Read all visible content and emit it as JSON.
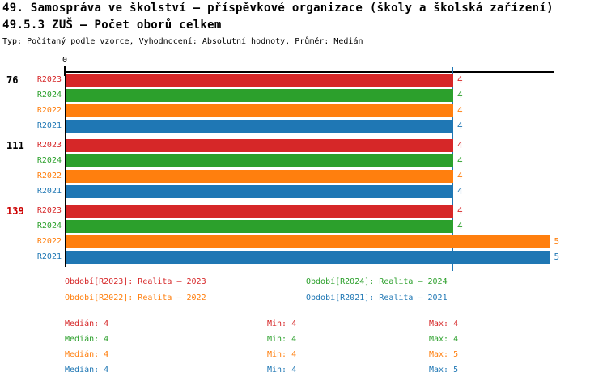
{
  "header": {
    "title_line1": "49. Samospráva ve školství – příspěvkové organizace (školy a školská zařízení)",
    "title_line2": "49.5.3 ZUŠ – Počet oborů celkem",
    "subtitle": "Typ: Počítaný podle vzorce, Vyhodnocení: Absolutní hodnoty, Průměr: Medián"
  },
  "colors": {
    "R2023": "#d62728",
    "R2024": "#2ca02c",
    "R2022": "#ff7f0e",
    "R2021": "#1f77b4",
    "axis": "#000000",
    "median_line": "#1f77b4",
    "highlighted_category": "#cc0000",
    "default_category": "#000000"
  },
  "chart_data": {
    "type": "bar",
    "orientation": "horizontal",
    "title": "49.5.3 ZUŠ – Počet oborů celkem",
    "categories": [
      "76",
      "111",
      "139"
    ],
    "bar_order": [
      "R2023",
      "R2024",
      "R2022",
      "R2021"
    ],
    "series": [
      {
        "name": "R2023",
        "values": [
          4,
          4,
          4
        ],
        "color": "#d62728"
      },
      {
        "name": "R2024",
        "values": [
          4,
          4,
          4
        ],
        "color": "#2ca02c"
      },
      {
        "name": "R2022",
        "values": [
          4,
          4,
          5
        ],
        "color": "#ff7f0e"
      },
      {
        "name": "R2021",
        "values": [
          4,
          4,
          5
        ],
        "color": "#1f77b4"
      }
    ],
    "xlim": [
      0,
      5.05
    ],
    "x_origin_label": "0",
    "grid": "off",
    "median_line": {
      "value": 4,
      "color": "#1f77b4"
    },
    "category_label_colors": {
      "76": "#000000",
      "111": "#000000",
      "139": "#cc0000"
    },
    "legend_position": "bottom"
  },
  "legend": {
    "items": [
      {
        "text": "Období[R2023]: Realita – 2023",
        "color": "#d62728"
      },
      {
        "text": "Období[R2024]: Realita – 2024",
        "color": "#2ca02c"
      },
      {
        "text": "Období[R2022]: Realita – 2022",
        "color": "#ff7f0e"
      },
      {
        "text": "Období[R2021]: Realita – 2021",
        "color": "#1f77b4"
      }
    ]
  },
  "stats": {
    "rows": [
      {
        "series": "R2023",
        "color": "#d62728",
        "median": "Medián: 4",
        "min": "Min: 4",
        "max": "Max: 4"
      },
      {
        "series": "R2024",
        "color": "#2ca02c",
        "median": "Medián: 4",
        "min": "Min: 4",
        "max": "Max: 4"
      },
      {
        "series": "R2022",
        "color": "#ff7f0e",
        "median": "Medián: 4",
        "min": "Min: 4",
        "max": "Max: 5"
      },
      {
        "series": "R2021",
        "color": "#1f77b4",
        "median": "Medián: 4",
        "min": "Min: 4",
        "max": "Max: 5"
      }
    ]
  }
}
